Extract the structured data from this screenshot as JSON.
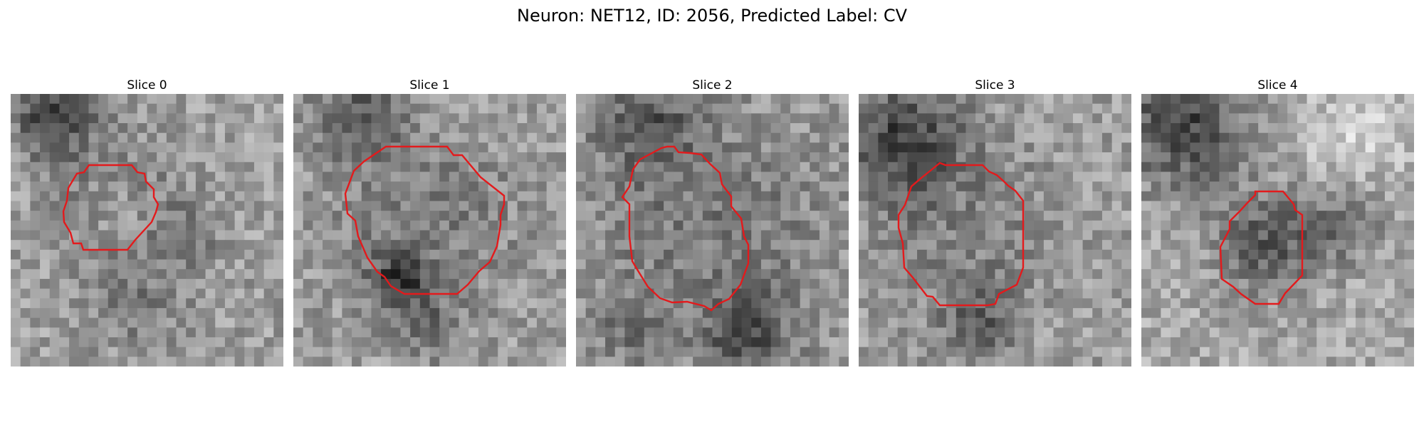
{
  "figure": {
    "suptitle": "Neuron: NET12, ID: 2056, Predicted Label: CV"
  },
  "panels": [
    {
      "title": "Slice 0"
    },
    {
      "title": "Slice 1"
    },
    {
      "title": "Slice 2"
    },
    {
      "title": "Slice 3"
    },
    {
      "title": "Slice 4"
    }
  ],
  "colors": {
    "contour": "#e31a1c",
    "background": "#ffffff"
  }
}
